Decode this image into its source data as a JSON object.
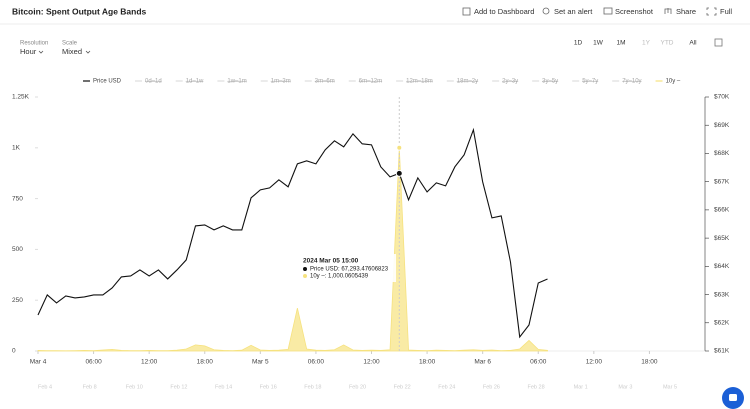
{
  "header": {
    "title": "Bitcoin: Spent Output Age Bands",
    "actions": [
      "Add to Dashboard",
      "Set an alert",
      "Screenshot",
      "Share",
      "Full"
    ]
  },
  "controls": {
    "resolution_label": "Resolution",
    "resolution": "Hour",
    "scale_label": "Scale",
    "scale": "Mixed",
    "ranges": [
      "1D",
      "1W",
      "1M",
      "1Y",
      "YTD",
      "All"
    ]
  },
  "chart_data": {
    "type": "line",
    "x": [
      0,
      1,
      2,
      3,
      4,
      5,
      6,
      7,
      8,
      9,
      10,
      11,
      12,
      13,
      14,
      15,
      16,
      17,
      18,
      19,
      20,
      21,
      22,
      23,
      24,
      25,
      26,
      27,
      28,
      29,
      30,
      31,
      32,
      33,
      34,
      35,
      36,
      37,
      38,
      39,
      40,
      41,
      42,
      43,
      44,
      45,
      46,
      47,
      48,
      49,
      50,
      51,
      52,
      53,
      54,
      55
    ],
    "xlim": [
      0,
      72
    ],
    "xticks": [
      {
        "value": 0,
        "label": "Mar 4"
      },
      {
        "value": 6,
        "label": "06:00"
      },
      {
        "value": 12,
        "label": "12:00"
      },
      {
        "value": 18,
        "label": "18:00"
      },
      {
        "value": 24,
        "label": "Mar 5"
      },
      {
        "value": 30,
        "label": "06:00"
      },
      {
        "value": 36,
        "label": "12:00"
      },
      {
        "value": 42,
        "label": "18:00"
      },
      {
        "value": 48,
        "label": "Mar 6"
      },
      {
        "value": 54,
        "label": "06:00"
      },
      {
        "value": 60,
        "label": "12:00"
      },
      {
        "value": 66,
        "label": "18:00"
      }
    ],
    "ylim": [
      0,
      1250
    ],
    "yticks": [
      0,
      250,
      500,
      750,
      {
        "value": 1000,
        "label": "1K"
      },
      {
        "value": 1250,
        "label": "1.25K"
      }
    ],
    "y2lim": [
      61000,
      70000
    ],
    "y2ticks": [
      {
        "value": 61000,
        "label": "$61K"
      },
      {
        "value": 62000,
        "label": "$62K"
      },
      {
        "value": 63000,
        "label": "$63K"
      },
      {
        "value": 64000,
        "label": "$64K"
      },
      {
        "value": 65000,
        "label": "$65K"
      },
      {
        "value": 66000,
        "label": "$66K"
      },
      {
        "value": 67000,
        "label": "$67K"
      },
      {
        "value": 68000,
        "label": "$68K"
      },
      {
        "value": 69000,
        "label": "$69K"
      },
      {
        "value": 70000,
        "label": "$70K"
      }
    ],
    "series": [
      {
        "name": "Price USD",
        "color": "#111111",
        "axis": "y2",
        "values": [
          62277,
          62986,
          62702,
          62950,
          62879,
          62915,
          62986,
          62986,
          63234,
          63624,
          63660,
          63872,
          63660,
          63872,
          63553,
          63872,
          64227,
          65433,
          65468,
          65291,
          65433,
          65291,
          65291,
          66426,
          66709,
          66780,
          67064,
          66816,
          67631,
          67738,
          67631,
          68128,
          68447,
          68234,
          68695,
          68340,
          68305,
          67525,
          67170,
          67293.47606823,
          66355,
          67135,
          66638,
          66957,
          66851,
          67525,
          67950,
          68837,
          66993,
          65716,
          65787,
          64156,
          61496,
          61922,
          63411,
          63553
        ]
      },
      {
        "name": "10y –",
        "color": "#f6e27f",
        "values": [
          3,
          2,
          2,
          1,
          2,
          3,
          2,
          5,
          8,
          3,
          2,
          2,
          3,
          2,
          2,
          4,
          10,
          30,
          25,
          6,
          3,
          2,
          4,
          28,
          5,
          3,
          4,
          8,
          211,
          10,
          4,
          3,
          6,
          30,
          5,
          3,
          4,
          3,
          6,
          1000.0605439,
          5,
          3,
          2,
          4,
          3,
          2,
          4,
          6,
          3,
          5,
          2,
          3,
          10,
          52,
          8,
          3
        ]
      }
    ],
    "hidden_series": [
      "0d–1d",
      "1d–1w",
      "1w–1m",
      "1m–3m",
      "3m–6m",
      "6m–12m",
      "12m–18m",
      "18m–2y",
      "2y–3y",
      "3y–5y",
      "5y–7y",
      "7y–10y"
    ],
    "tooltip": {
      "index": 39,
      "title": "2024 Mar 05 15:00",
      "lines": [
        "Price USD: 67,293.47606823",
        "10y –: 1,000.0605439"
      ]
    }
  },
  "navigator": {
    "labels": [
      "Feb 4",
      "Feb 8",
      "Feb 10",
      "Feb 12",
      "Feb 14",
      "Feb 16",
      "Feb 18",
      "Feb 20",
      "Feb 22",
      "Feb 24",
      "Feb 26",
      "Feb 28",
      "Mar 1",
      "Mar 3",
      "Mar 5"
    ]
  }
}
